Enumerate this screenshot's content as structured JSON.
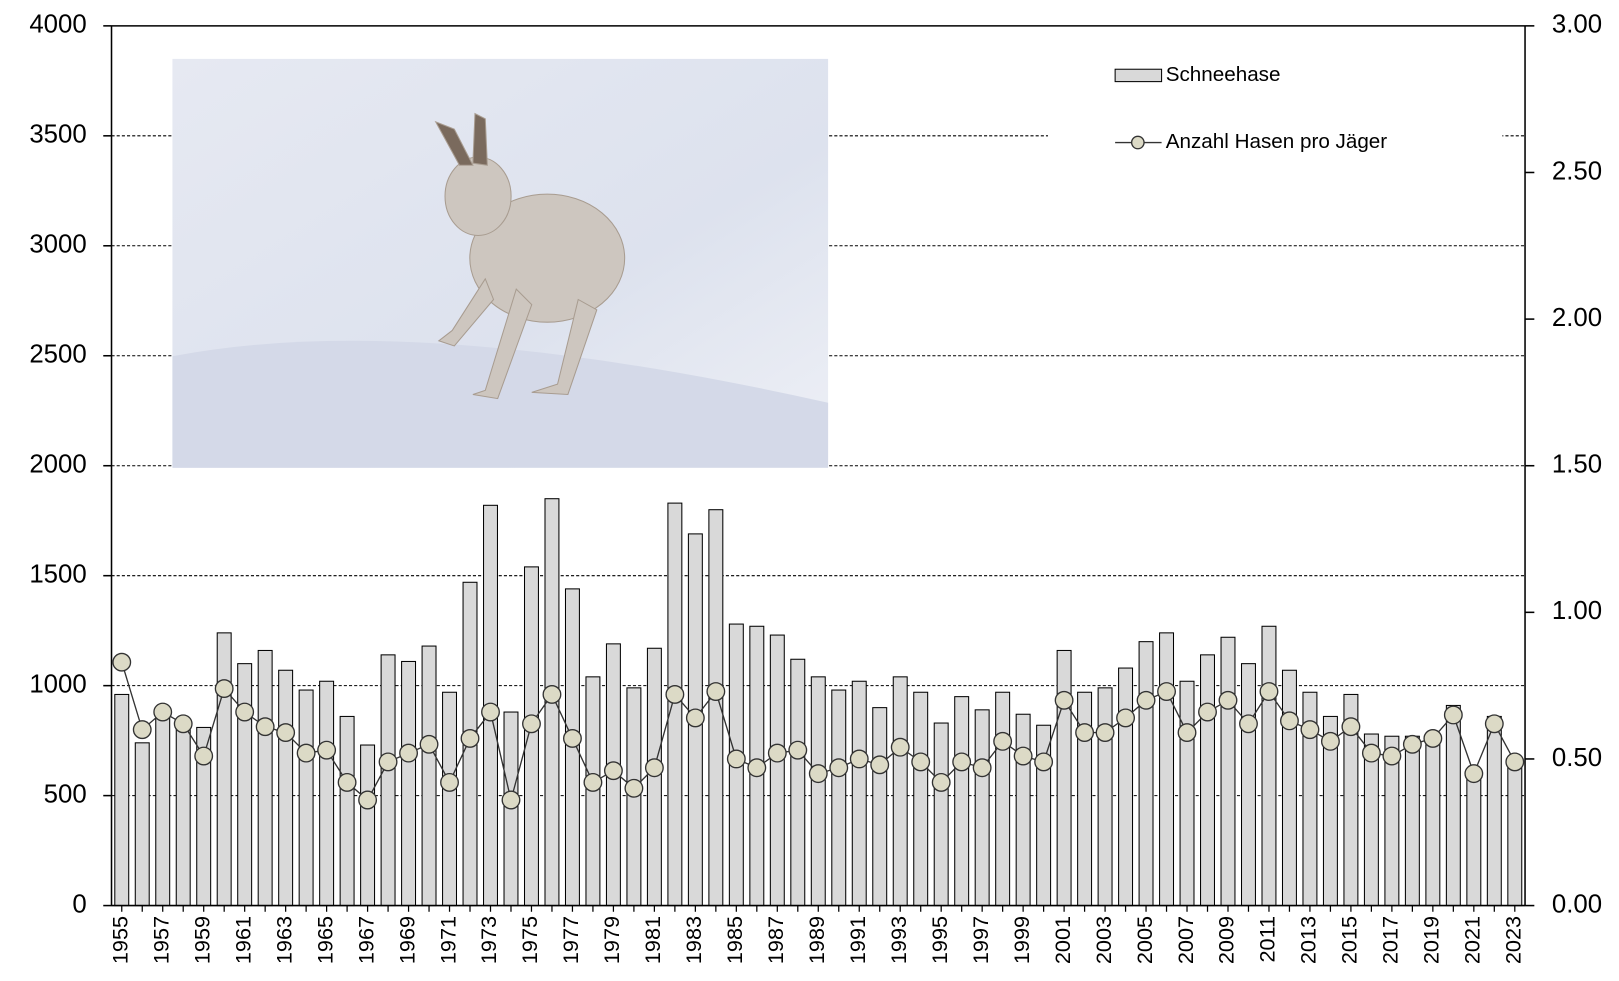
{
  "chart_data": {
    "type": "bar_line",
    "categories": [
      "1955",
      null,
      "1957",
      null,
      "1959",
      null,
      "1961",
      null,
      "1963",
      null,
      "1965",
      null,
      "1967",
      null,
      "1969",
      null,
      "1971",
      null,
      "1973",
      null,
      "1975",
      null,
      "1977",
      null,
      "1979",
      null,
      "1981",
      null,
      "1983",
      null,
      "1985",
      null,
      "1987",
      null,
      "1989",
      null,
      "1991",
      null,
      "1993",
      null,
      "1995",
      null,
      "1997",
      null,
      "1999",
      null,
      "2001",
      null,
      "2003",
      null,
      "2005",
      null,
      "2007",
      null,
      "2009",
      null,
      "2011",
      null,
      "2013",
      null,
      "2015",
      null,
      "2017",
      null,
      "2019",
      null,
      "2021",
      null,
      "2023"
    ],
    "series": [
      {
        "name": "Schneehase",
        "type": "bar",
        "color": "#d9d9d9",
        "values": [
          960,
          740,
          880,
          830,
          810,
          1240,
          1100,
          1160,
          1070,
          980,
          1020,
          860,
          730,
          1140,
          1110,
          1180,
          970,
          1470,
          1820,
          880,
          1540,
          1850,
          1440,
          1040,
          1190,
          990,
          1170,
          1830,
          1690,
          1800,
          1280,
          1270,
          1230,
          1120,
          1040,
          980,
          1020,
          900,
          1040,
          970,
          830,
          950,
          890,
          970,
          870,
          820,
          1160,
          970,
          990,
          1080,
          1200,
          1240,
          1020,
          1140,
          1220,
          1100,
          1270,
          1070,
          970,
          860,
          960,
          780,
          770,
          770,
          750,
          910,
          610,
          860,
          650
        ]
      },
      {
        "name": "Anzahl Hasen pro Jäger",
        "type": "line",
        "axis": "y2",
        "color": "#dcdac6",
        "values": [
          0.83,
          0.6,
          0.66,
          0.62,
          0.51,
          0.74,
          0.66,
          0.61,
          0.59,
          0.52,
          0.53,
          0.42,
          0.36,
          0.49,
          0.52,
          0.55,
          0.42,
          0.57,
          0.66,
          0.36,
          0.62,
          0.72,
          0.57,
          0.42,
          0.46,
          0.4,
          0.47,
          0.72,
          0.64,
          0.73,
          0.5,
          0.47,
          0.52,
          0.53,
          0.45,
          0.47,
          0.5,
          0.48,
          0.54,
          0.49,
          0.42,
          0.49,
          0.47,
          0.56,
          0.51,
          0.49,
          0.7,
          0.59,
          0.59,
          0.64,
          0.7,
          0.73,
          0.59,
          0.66,
          0.7,
          0.62,
          0.73,
          0.63,
          0.6,
          0.56,
          0.61,
          0.52,
          0.51,
          0.55,
          0.57,
          0.65,
          0.45,
          0.62,
          0.49
        ]
      }
    ],
    "ylim": [
      0,
      4000
    ],
    "yticks": [
      0,
      500,
      1000,
      1500,
      2000,
      2500,
      3000,
      3500,
      4000
    ],
    "y2lim": [
      0,
      3
    ],
    "y2ticks": [
      {
        "value": 0,
        "label": "0.00"
      },
      {
        "value": 0.5,
        "label": "0.50"
      },
      {
        "value": 1,
        "label": "1.00"
      },
      {
        "value": 1.5,
        "label": "1.50"
      },
      {
        "value": 2,
        "label": "2.00"
      },
      {
        "value": 2.5,
        "label": "2.50"
      },
      {
        "value": 3,
        "label": "3.00"
      }
    ],
    "grid": true,
    "legend": "top-right"
  }
}
